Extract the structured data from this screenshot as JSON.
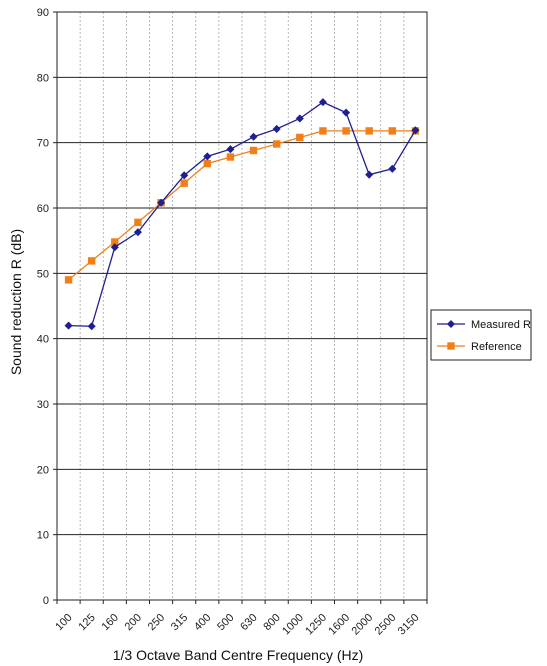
{
  "chart_data": {
    "type": "line",
    "title": "",
    "xlabel": "1/3 Octave Band Centre Frequency (Hz)",
    "ylabel": "Sound reduction R (dB)",
    "categories": [
      "100",
      "125",
      "160",
      "200",
      "250",
      "315",
      "400",
      "500",
      "630",
      "800",
      "1000",
      "1250",
      "1600",
      "2000",
      "2500",
      "3150"
    ],
    "ylim": [
      0,
      90
    ],
    "yticks": [
      0,
      10,
      20,
      30,
      40,
      50,
      60,
      70,
      80,
      90
    ],
    "grid": {
      "horizontal": "solid",
      "vertical": "dashed"
    },
    "legend_position": "right",
    "series": [
      {
        "name": "Measured R",
        "color": "#1f1f8f",
        "marker": "diamond",
        "values": [
          42.0,
          41.9,
          54.0,
          56.3,
          60.8,
          65.0,
          67.9,
          69.0,
          70.9,
          72.1,
          73.7,
          76.2,
          74.6,
          65.1,
          66.0,
          71.9
        ]
      },
      {
        "name": "Reference",
        "color": "#f07f1a",
        "marker": "square",
        "values": [
          49.0,
          51.9,
          54.8,
          57.8,
          60.8,
          63.8,
          66.8,
          67.8,
          68.8,
          69.8,
          70.8,
          71.8,
          71.8,
          71.8,
          71.8,
          71.8
        ]
      }
    ]
  }
}
